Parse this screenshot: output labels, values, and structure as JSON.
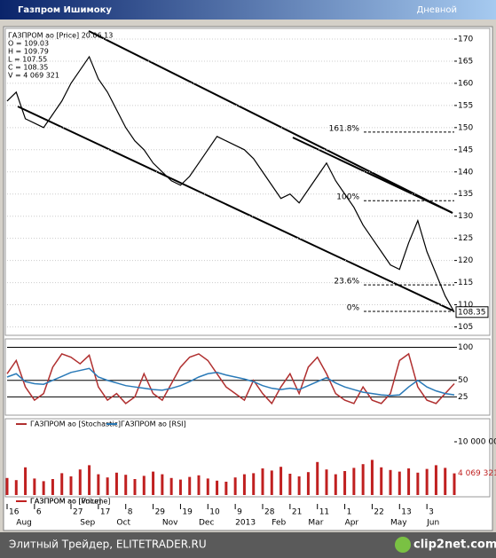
{
  "window": {
    "title": "Газпром Ишимоку",
    "mode": "Дневной"
  },
  "footer": {
    "left": "Элитный Трейдер, ELITETRADER.RU",
    "logo": "clip2net.com"
  },
  "chart_data": [
    {
      "type": "line",
      "info": [
        "ГАЗПРОМ ао [Price] 20.06.13",
        "O = 109.03",
        "H = 109.79",
        "L = 107.55",
        "C = 108.35",
        "V = 4 069 321"
      ],
      "xlim": [
        0,
        49
      ],
      "ylim": [
        103.5,
        172
      ],
      "yticks": [
        105,
        110,
        115,
        120,
        125,
        130,
        135,
        140,
        145,
        150,
        155,
        160,
        165,
        170
      ],
      "grid": true,
      "annotations": [
        {
          "label": "161.8%",
          "value": 149
        },
        {
          "label": "100%",
          "value": 133.5
        },
        {
          "label": "23.6%",
          "value": 114.5
        },
        {
          "label": "0%",
          "value": 108.5
        }
      ],
      "series": [
        {
          "name": "ГАЗПРОМ ао [Price]",
          "color": "#000000",
          "values": [
            156,
            158,
            152,
            151,
            150,
            153,
            156,
            160,
            163,
            166,
            161,
            158,
            154,
            150,
            147,
            145,
            142,
            140,
            138,
            137,
            139,
            142,
            145,
            148,
            147,
            146,
            145,
            143,
            140,
            137,
            134,
            135,
            133,
            136,
            139,
            142,
            138,
            135,
            132,
            128,
            125,
            122,
            119,
            118,
            124,
            129,
            122,
            117,
            112,
            108.35
          ]
        }
      ]
    },
    {
      "type": "line",
      "xlim": [
        0,
        49
      ],
      "ylim": [
        0,
        110
      ],
      "yticks": [
        25,
        50,
        100
      ],
      "grid": true,
      "series": [
        {
          "name": "ГАЗПРОМ ао [Stochastic]",
          "color": "#b03030",
          "values": [
            60,
            80,
            40,
            20,
            30,
            70,
            90,
            85,
            75,
            88,
            40,
            20,
            30,
            15,
            25,
            60,
            30,
            20,
            45,
            70,
            85,
            90,
            80,
            60,
            40,
            30,
            20,
            50,
            30,
            15,
            40,
            60,
            30,
            70,
            85,
            60,
            30,
            20,
            15,
            40,
            20,
            15,
            30,
            80,
            90,
            40,
            20,
            15,
            30,
            45
          ]
        },
        {
          "name": "ГАЗПРОМ ао [RSI]",
          "color": "#2a7ab8",
          "values": [
            55,
            60,
            48,
            45,
            44,
            50,
            56,
            62,
            65,
            68,
            55,
            50,
            46,
            42,
            40,
            38,
            36,
            35,
            38,
            42,
            48,
            55,
            60,
            62,
            58,
            55,
            52,
            48,
            42,
            38,
            36,
            38,
            36,
            42,
            48,
            54,
            46,
            40,
            36,
            32,
            30,
            28,
            27,
            28,
            40,
            50,
            40,
            34,
            30,
            28
          ]
        }
      ]
    },
    {
      "type": "bar",
      "xlim": [
        0,
        49
      ],
      "ylim": [
        0,
        14000000
      ],
      "yticks": [
        {
          "value": 10000000,
          "label": "10 000 000"
        }
      ],
      "grid": false,
      "color": "#c02020",
      "series": [
        {
          "name": "ГАЗПРОМ ао [Volume]",
          "color": "#c02020",
          "values": [
            3200000,
            2800000,
            5200000,
            3100000,
            2600000,
            3000000,
            4100000,
            3500000,
            4800000,
            5600000,
            3900000,
            3300000,
            4200000,
            3800000,
            3000000,
            3600000,
            4400000,
            3900000,
            3200000,
            2900000,
            3400000,
            3700000,
            3100000,
            2700000,
            2500000,
            3300000,
            3900000,
            4100000,
            5000000,
            4600000,
            5300000,
            4000000,
            3500000,
            4300000,
            6200000,
            4800000,
            3900000,
            4500000,
            5100000,
            5800000,
            6600000,
            5200000,
            4700000,
            4400000,
            5000000,
            4200000,
            4900000,
            5600000,
            5100000,
            4069321
          ],
          "value_labels": {
            "49": "4 069 321"
          }
        }
      ],
      "xticks": [
        {
          "value": 0,
          "label": "16"
        },
        {
          "value": 3,
          "label": "6"
        },
        {
          "value": 7,
          "label": "27"
        },
        {
          "value": 10,
          "label": "17"
        },
        {
          "value": 13,
          "label": "8"
        },
        {
          "value": 16,
          "label": "29"
        },
        {
          "value": 19,
          "label": "19"
        },
        {
          "value": 22,
          "label": "10"
        },
        {
          "value": 25,
          "label": "9"
        },
        {
          "value": 28,
          "label": "28"
        },
        {
          "value": 31,
          "label": "21"
        },
        {
          "value": 34,
          "label": "11"
        },
        {
          "value": 37,
          "label": "1"
        },
        {
          "value": 40,
          "label": "22"
        },
        {
          "value": 43,
          "label": "13"
        },
        {
          "value": 46,
          "label": "3"
        }
      ],
      "xmonths": [
        {
          "value": 1,
          "label": "Aug"
        },
        {
          "value": 8,
          "label": "Sep"
        },
        {
          "value": 12,
          "label": "Oct"
        },
        {
          "value": 17,
          "label": "Nov"
        },
        {
          "value": 21,
          "label": "Dec"
        },
        {
          "value": 25,
          "label": "2013"
        },
        {
          "value": 29,
          "label": "Feb"
        },
        {
          "value": 33,
          "label": "Mar"
        },
        {
          "value": 37,
          "label": "Apr"
        },
        {
          "value": 42,
          "label": "May"
        },
        {
          "value": 46,
          "label": "Jun"
        }
      ]
    }
  ]
}
